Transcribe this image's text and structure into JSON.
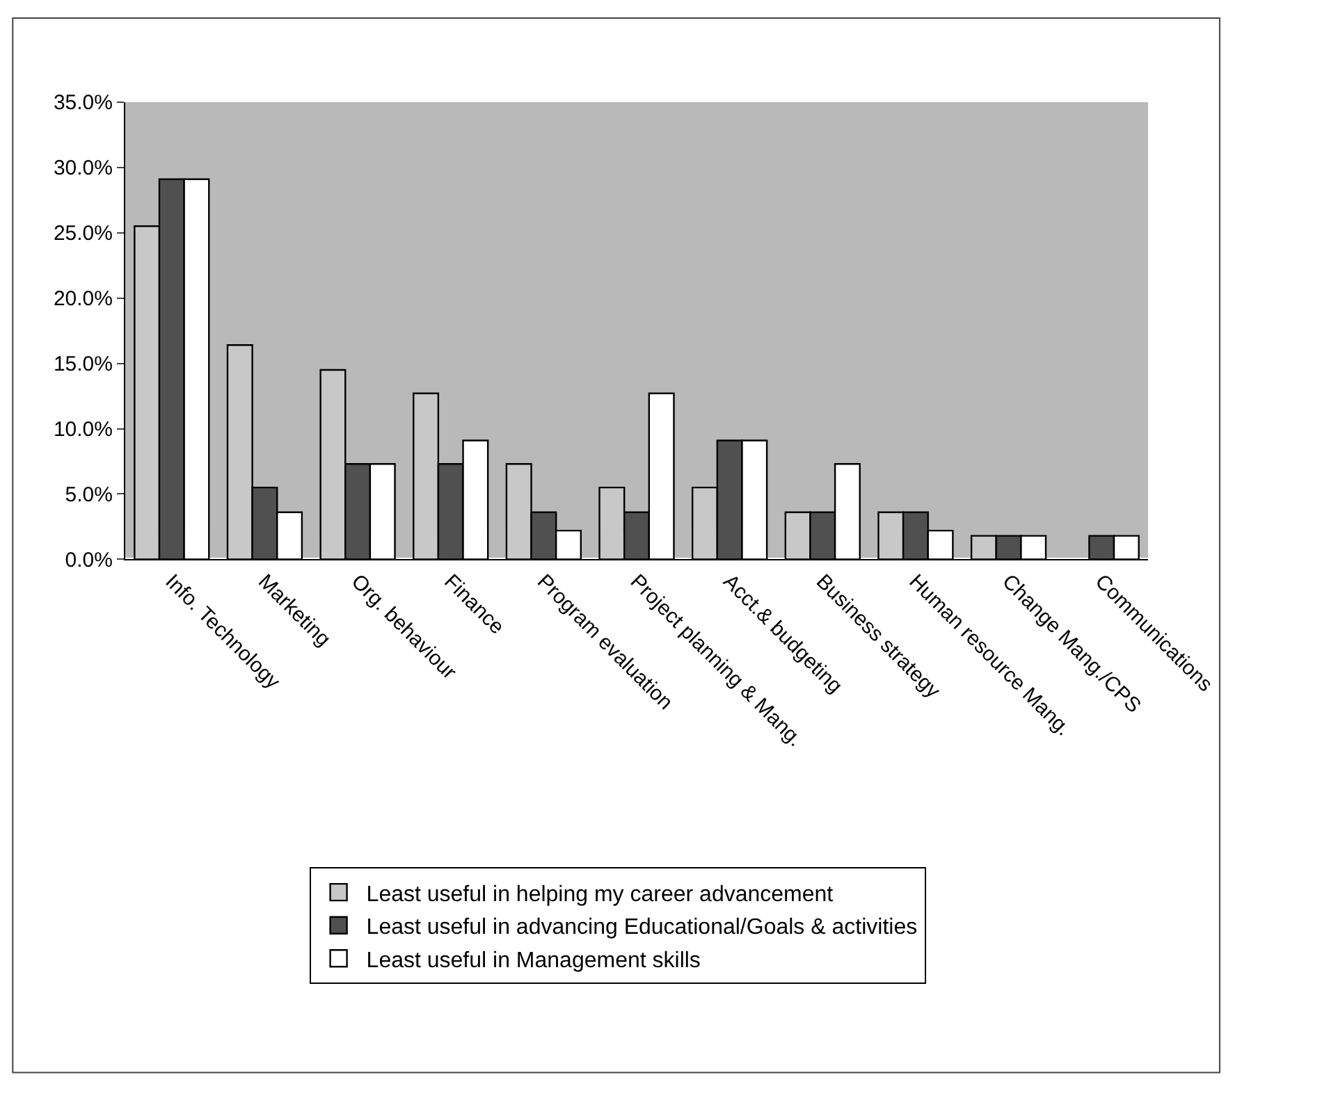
{
  "chart_data": {
    "type": "bar",
    "categories": [
      "Info. Technology",
      "Marketing",
      "Org. behaviour",
      "Finance",
      "Program evaluation",
      "Project planning & Mang.",
      "Acct.& budgeting",
      "Business strategy",
      "Human resource Mang.",
      "Change Mang./CPS",
      "Communications"
    ],
    "series": [
      {
        "name": "Least useful in helping my career advancement",
        "color": "#c8c8c8",
        "values": [
          25.5,
          16.4,
          14.5,
          12.7,
          7.3,
          5.5,
          5.5,
          3.6,
          3.6,
          1.8,
          null
        ]
      },
      {
        "name": "Least useful in advancing Educational/Goals & activities",
        "color": "#505050",
        "values": [
          29.1,
          5.5,
          7.3,
          7.3,
          3.6,
          3.6,
          9.1,
          3.6,
          3.6,
          1.8,
          1.8
        ]
      },
      {
        "name": "Least useful in Management skills",
        "color": "#ffffff",
        "values": [
          29.1,
          3.6,
          7.3,
          9.1,
          2.2,
          12.7,
          9.1,
          7.3,
          2.2,
          1.8,
          1.8
        ]
      }
    ],
    "ylim": [
      0,
      35
    ],
    "yticks": [
      {
        "value": 0,
        "label": "0.0%"
      },
      {
        "value": 5,
        "label": "5.0%"
      },
      {
        "value": 10,
        "label": "10.0%"
      },
      {
        "value": 15,
        "label": "15.0%"
      },
      {
        "value": 20,
        "label": "20.0%"
      },
      {
        "value": 25,
        "label": "25.0%"
      },
      {
        "value": 30,
        "label": "30.0%"
      },
      {
        "value": 35,
        "label": "35.0%"
      }
    ],
    "grid": false,
    "legend": "bottom"
  }
}
